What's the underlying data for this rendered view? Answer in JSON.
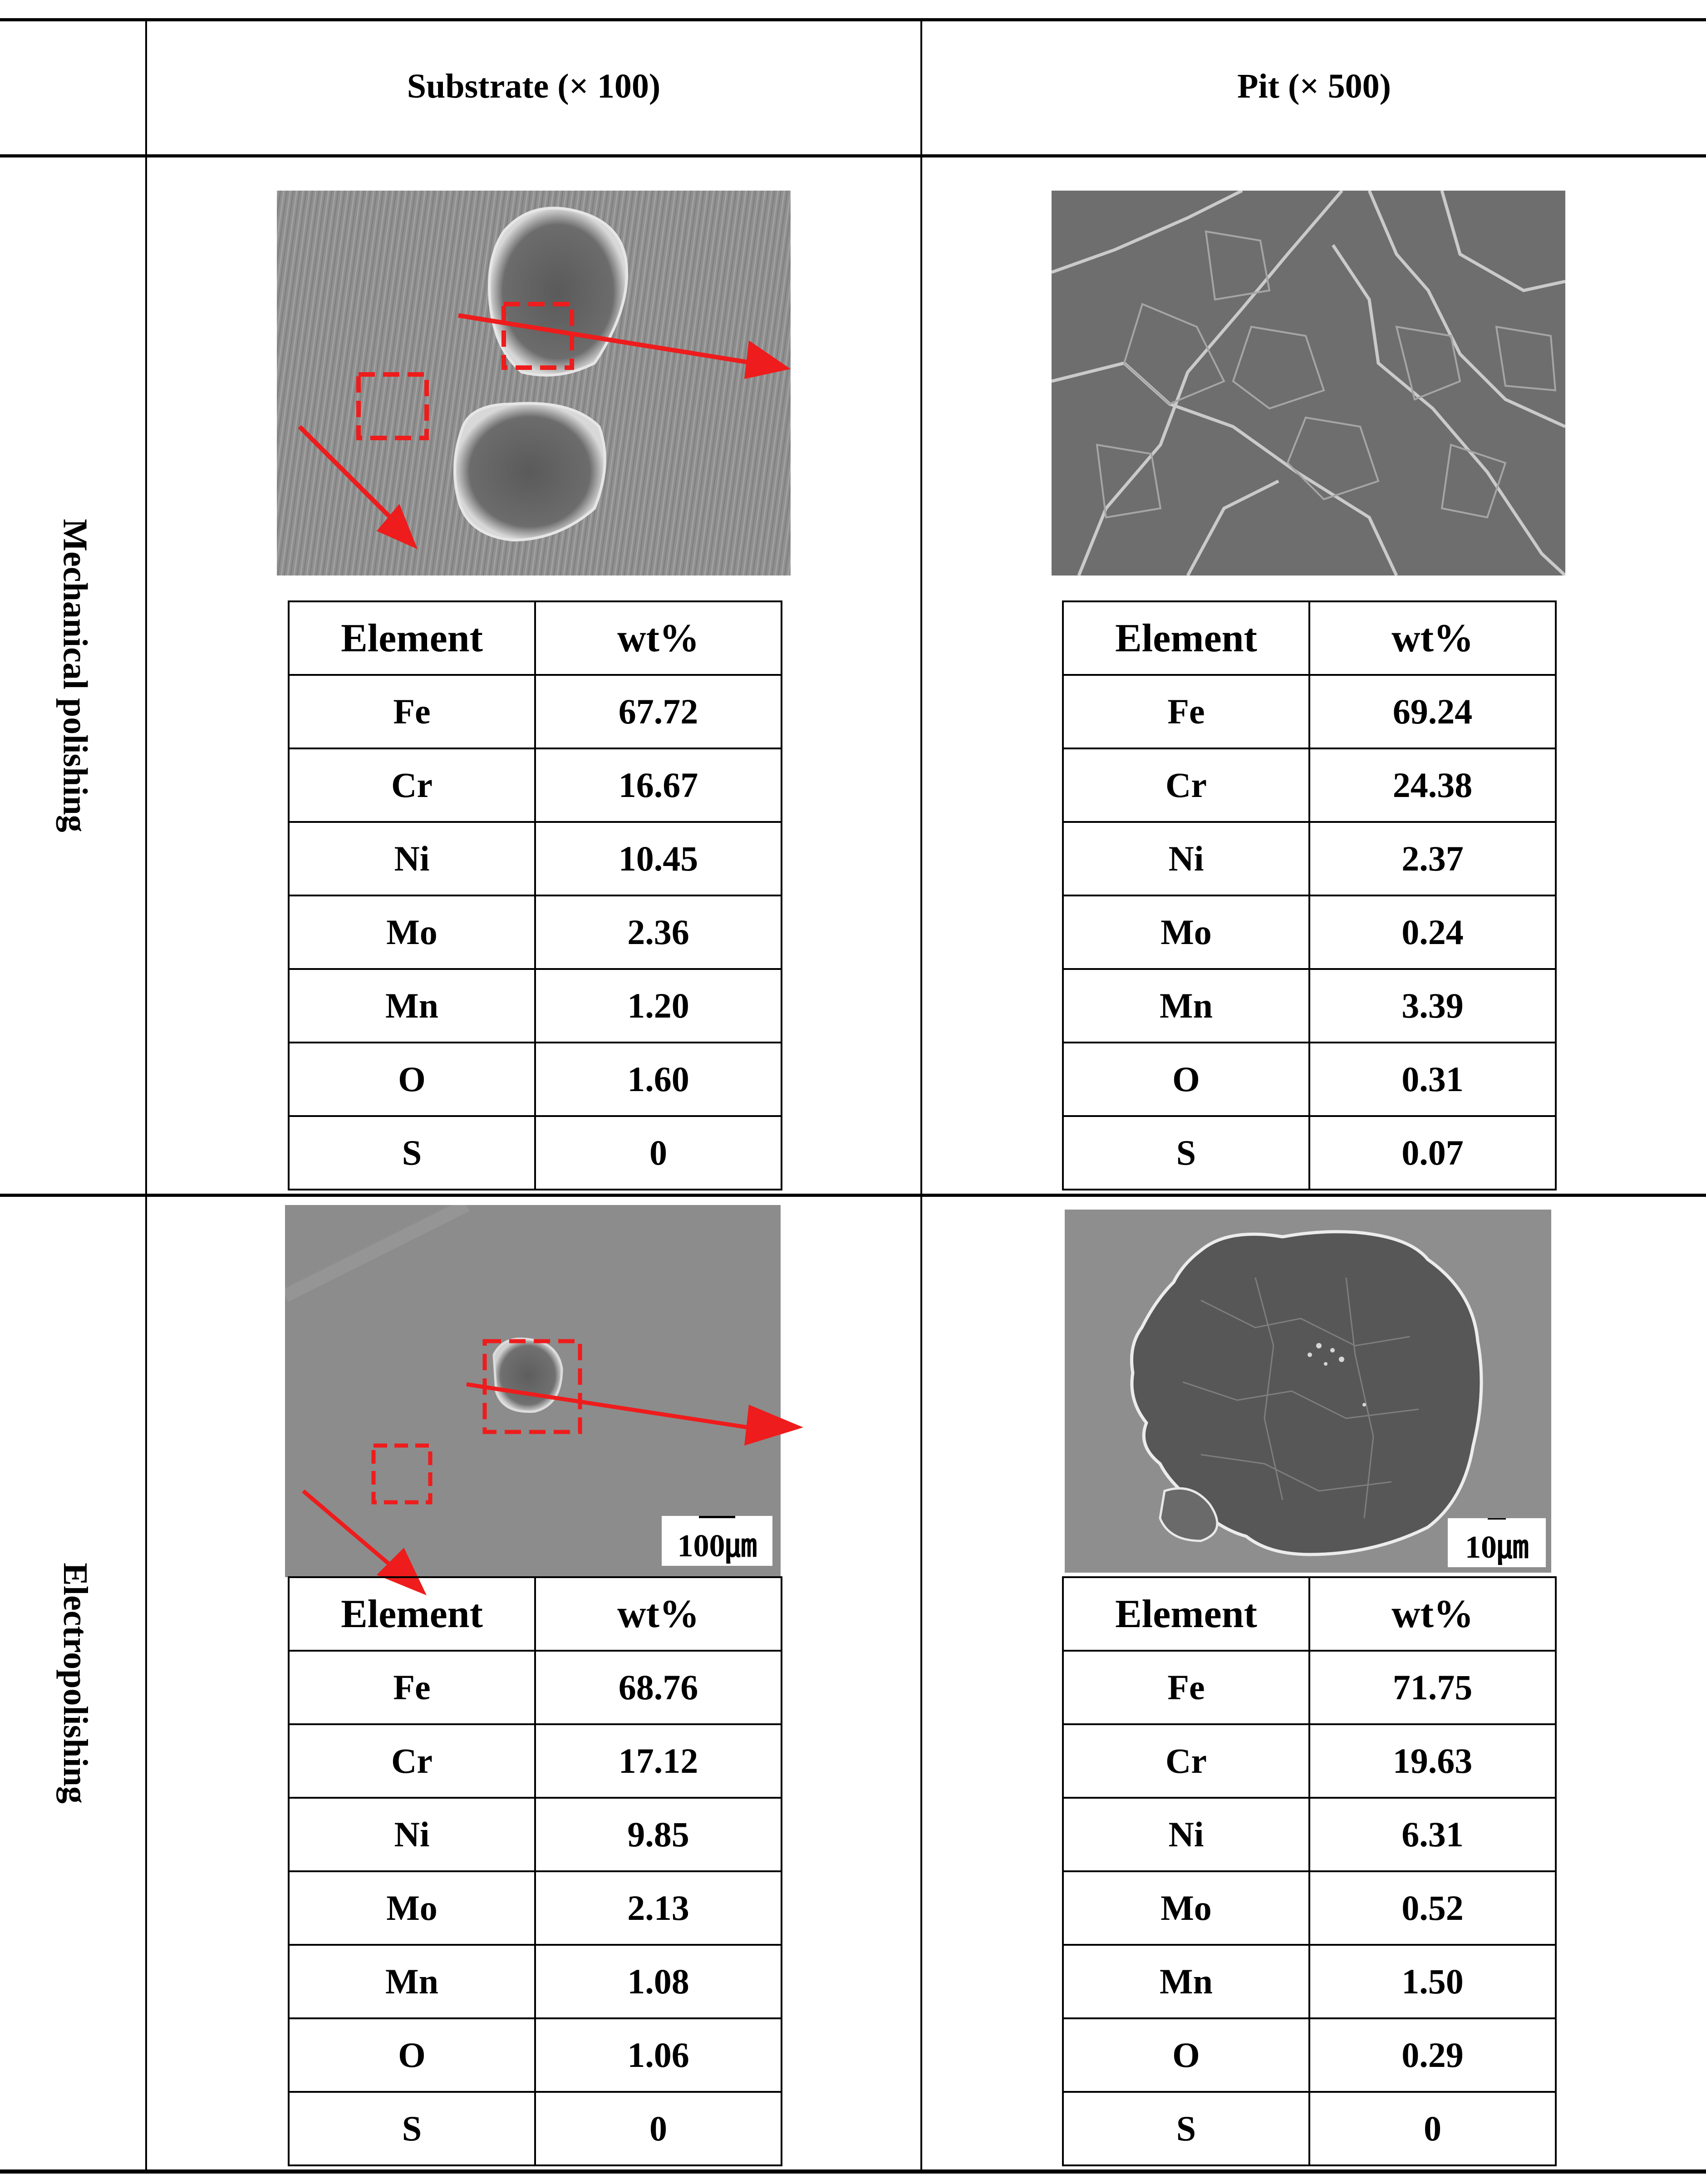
{
  "header": {
    "col_substrate": "Substrate (× 100)",
    "col_pit": "Pit (× 500)"
  },
  "rows": [
    {
      "label": "Mechanical polishing",
      "substrate_table": {
        "headers": [
          "Element",
          "wt%"
        ],
        "rows": [
          [
            "Fe",
            "67.72"
          ],
          [
            "Cr",
            "16.67"
          ],
          [
            "Ni",
            "10.45"
          ],
          [
            "Mo",
            "2.36"
          ],
          [
            "Mn",
            "1.20"
          ],
          [
            "O",
            "1.60"
          ],
          [
            "S",
            "0"
          ]
        ]
      },
      "pit_table": {
        "headers": [
          "Element",
          "wt%"
        ],
        "rows": [
          [
            "Fe",
            "69.24"
          ],
          [
            "Cr",
            "24.38"
          ],
          [
            "Ni",
            "2.37"
          ],
          [
            "Mo",
            "0.24"
          ],
          [
            "Mn",
            "3.39"
          ],
          [
            "O",
            "0.31"
          ],
          [
            "S",
            "0.07"
          ]
        ]
      }
    },
    {
      "label": "Electropolishing",
      "substrate_scale": "100㎛",
      "pit_scale": "10㎛",
      "substrate_table": {
        "headers": [
          "Element",
          "wt%"
        ],
        "rows": [
          [
            "Fe",
            "68.76"
          ],
          [
            "Cr",
            "17.12"
          ],
          [
            "Ni",
            "9.85"
          ],
          [
            "Mo",
            "2.13"
          ],
          [
            "Mn",
            "1.08"
          ],
          [
            "O",
            "1.06"
          ],
          [
            "S",
            "0"
          ]
        ]
      },
      "pit_table": {
        "headers": [
          "Element",
          "wt%"
        ],
        "rows": [
          [
            "Fe",
            "71.75"
          ],
          [
            "Cr",
            "19.63"
          ],
          [
            "Ni",
            "6.31"
          ],
          [
            "Mo",
            "0.52"
          ],
          [
            "Mn",
            "1.50"
          ],
          [
            "O",
            "0.29"
          ],
          [
            "S",
            "0"
          ]
        ]
      }
    }
  ],
  "colors": {
    "annotation": "#ee1c1c",
    "sem_gray": "#8a8a8a"
  }
}
